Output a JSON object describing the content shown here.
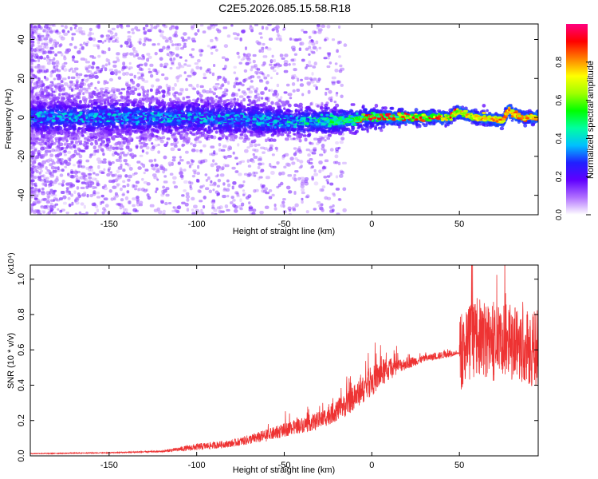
{
  "title": "C2E5.2026.085.15.58.R18",
  "chart_data": [
    {
      "type": "heatmap",
      "name": "spectrogram",
      "xlabel": "Height of straight line (km)",
      "ylabel": "Frequency (Hz)",
      "xlim": [
        -195,
        95
      ],
      "ylim": [
        -50,
        48
      ],
      "xticks": [
        -150,
        -100,
        -50,
        0,
        50
      ],
      "xtick_labels": [
        "-150",
        "-100",
        "-50",
        "0",
        "50"
      ],
      "yticks": [
        -40,
        -20,
        0,
        20,
        40
      ],
      "ytick_labels": [
        "-40",
        "-20",
        "0",
        "20",
        "40"
      ],
      "colorbar": {
        "label": "Normalized spectral amplitude",
        "range": [
          0,
          1
        ],
        "ticks": [
          0.0,
          0.2,
          0.4,
          0.6,
          0.8
        ],
        "tick_labels": [
          "0.0",
          "0.2",
          "0.4",
          "0.6",
          "0.8"
        ],
        "colors": [
          "#ffffff",
          "#b070ff",
          "#6000ff",
          "#2020ff",
          "#00c0ff",
          "#00ffa0",
          "#00ff00",
          "#a0ff00",
          "#ffff00",
          "#ff8000",
          "#ff0000",
          "#ff0080"
        ]
      },
      "ridge": [
        [
          -195,
          0
        ],
        [
          -150,
          0
        ],
        [
          -100,
          0
        ],
        [
          -50,
          -2
        ],
        [
          -20,
          -2
        ],
        [
          0,
          0
        ],
        [
          20,
          0
        ],
        [
          45,
          0
        ],
        [
          48,
          3
        ],
        [
          52,
          2
        ],
        [
          55,
          1
        ],
        [
          60,
          0
        ],
        [
          70,
          -1
        ],
        [
          75,
          -2
        ],
        [
          78,
          4
        ],
        [
          80,
          2
        ],
        [
          85,
          0
        ],
        [
          95,
          0
        ]
      ]
    },
    {
      "type": "line",
      "name": "snr",
      "xlabel": "Height of straight line (km)",
      "ylabel": "SNR (10 * v/v)",
      "multiplier_label": "(x10⁴)",
      "xlim": [
        -195,
        95
      ],
      "ylim": [
        0,
        1.08
      ],
      "xticks": [
        -150,
        -100,
        -50,
        0,
        50
      ],
      "xtick_labels": [
        "-150",
        "-100",
        "-50",
        "0",
        "50"
      ],
      "yticks": [
        0.0,
        0.2,
        0.4,
        0.6,
        0.8,
        1.0
      ],
      "ytick_labels": [
        "0.0",
        "0.2",
        "0.4",
        "0.6",
        "0.8",
        "1.0"
      ],
      "color": "#ee3333",
      "envelope": [
        [
          -195,
          0.01,
          0.015
        ],
        [
          -150,
          0.015,
          0.02
        ],
        [
          -120,
          0.02,
          0.03
        ],
        [
          -100,
          0.03,
          0.07
        ],
        [
          -80,
          0.05,
          0.09
        ],
        [
          -60,
          0.08,
          0.15
        ],
        [
          -45,
          0.12,
          0.2
        ],
        [
          -30,
          0.15,
          0.25
        ],
        [
          -15,
          0.22,
          0.35
        ],
        [
          -5,
          0.3,
          0.45
        ],
        [
          5,
          0.38,
          0.55
        ],
        [
          15,
          0.47,
          0.55
        ],
        [
          30,
          0.53,
          0.57
        ],
        [
          45,
          0.56,
          0.6
        ],
        [
          50,
          0.58,
          0.58
        ],
        [
          52,
          0.6,
          0.62
        ],
        [
          60,
          0.6,
          0.75
        ],
        [
          70,
          0.58,
          0.7
        ],
        [
          80,
          0.6,
          0.7
        ],
        [
          95,
          0.55,
          0.65
        ]
      ]
    }
  ]
}
